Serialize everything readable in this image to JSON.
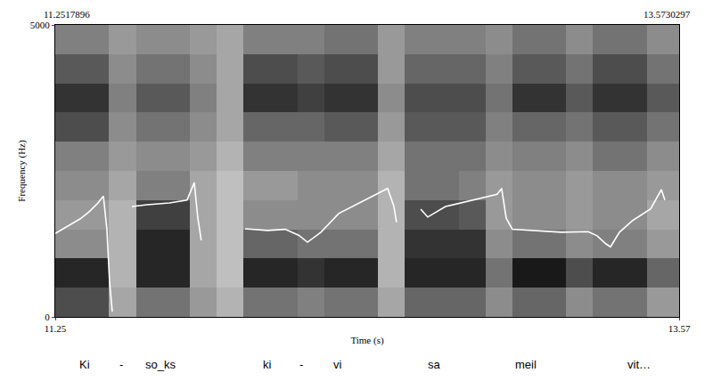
{
  "chart_data": {
    "type": "heatmap",
    "x_title": "Time (s)",
    "y_title": "Frequency (Hz)",
    "xlim": [
      11.25,
      13.57
    ],
    "xticks": [
      11.25,
      13.57
    ],
    "ylim": [
      0,
      5000
    ],
    "yticks": [
      0,
      5000
    ],
    "grid": false,
    "corner_labels": [
      "11.2517896",
      "13.5730297"
    ],
    "heatmap": {
      "x_edges": [
        11.25,
        11.35,
        11.45,
        11.55,
        11.65,
        11.75,
        11.85,
        11.95,
        12.05,
        12.15,
        12.25,
        12.35,
        12.45,
        12.55,
        12.65,
        12.75,
        12.85,
        12.95,
        13.05,
        13.15,
        13.25,
        13.35,
        13.45,
        13.57
      ],
      "y_edges": [
        0,
        500,
        1000,
        1500,
        2000,
        2500,
        3000,
        3500,
        4000,
        4500,
        5000
      ],
      "zlim": [
        0,
        100
      ],
      "cells": [
        [
          70,
          70,
          35,
          55,
          55,
          40,
          30,
          55,
          55,
          50,
          55,
          55,
          35,
          60,
          60,
          60,
          45,
          60,
          60,
          45,
          55,
          55,
          40
        ],
        [
          85,
          85,
          30,
          85,
          85,
          35,
          25,
          85,
          85,
          80,
          85,
          85,
          30,
          85,
          85,
          85,
          55,
          90,
          90,
          70,
          85,
          85,
          60
        ],
        [
          45,
          45,
          30,
          85,
          85,
          35,
          25,
          60,
          60,
          55,
          55,
          55,
          30,
          80,
          80,
          80,
          45,
          55,
          55,
          45,
          50,
          50,
          40
        ],
        [
          40,
          40,
          30,
          75,
          75,
          35,
          25,
          45,
          45,
          45,
          45,
          45,
          30,
          70,
          70,
          65,
          40,
          45,
          45,
          40,
          45,
          45,
          35
        ],
        [
          45,
          45,
          35,
          50,
          50,
          35,
          25,
          40,
          40,
          45,
          45,
          45,
          30,
          55,
          55,
          50,
          40,
          45,
          45,
          40,
          45,
          45,
          40
        ],
        [
          50,
          50,
          40,
          45,
          45,
          40,
          30,
          50,
          50,
          50,
          50,
          50,
          35,
          55,
          55,
          55,
          45,
          50,
          50,
          45,
          55,
          55,
          45
        ],
        [
          70,
          70,
          45,
          55,
          55,
          45,
          35,
          60,
          60,
          60,
          65,
          65,
          40,
          65,
          65,
          65,
          50,
          60,
          60,
          55,
          65,
          65,
          55
        ],
        [
          80,
          80,
          50,
          65,
          65,
          50,
          35,
          80,
          80,
          75,
          80,
          80,
          45,
          70,
          70,
          70,
          55,
          80,
          80,
          65,
          80,
          80,
          65
        ],
        [
          65,
          65,
          45,
          55,
          55,
          45,
          35,
          70,
          70,
          65,
          70,
          70,
          40,
          60,
          60,
          60,
          50,
          65,
          65,
          55,
          70,
          70,
          55
        ],
        [
          50,
          50,
          40,
          45,
          45,
          40,
          35,
          50,
          50,
          50,
          55,
          55,
          40,
          50,
          50,
          50,
          45,
          55,
          55,
          45,
          55,
          55,
          45
        ]
      ]
    },
    "series": [
      {
        "type": "line",
        "color": "#ffffff",
        "x": [
          11.25,
          11.293,
          11.343,
          11.376,
          11.409,
          11.429,
          11.442,
          11.452,
          11.462,
          11.5,
          11.535,
          11.591,
          11.674,
          11.74,
          11.767,
          11.78,
          11.793,
          11.87,
          11.956,
          12.039,
          12.105,
          12.155,
          12.188,
          12.238,
          12.304,
          12.403,
          12.486,
          12.509,
          12.519,
          12.55,
          12.609,
          12.635,
          12.701,
          12.8,
          12.893,
          12.91,
          12.927,
          12.95,
          13.033,
          13.132,
          13.232,
          13.265,
          13.298,
          13.315,
          13.348,
          13.397,
          13.464,
          13.504,
          13.517
        ],
        "values": [
          1430,
          1550,
          1680,
          1800,
          1950,
          2070,
          1500,
          600,
          90,
          null,
          1890,
          1920,
          1950,
          2000,
          2300,
          1700,
          1310,
          null,
          1510,
          1480,
          1500,
          1400,
          1280,
          1450,
          1770,
          2000,
          2200,
          1900,
          1620,
          null,
          1845,
          1710,
          1890,
          2000,
          2100,
          2200,
          1690,
          1500,
          1480,
          1450,
          1460,
          1390,
          1250,
          1200,
          1450,
          1650,
          1850,
          2180,
          2000
        ]
      }
    ],
    "annotations": [
      {
        "text": "Ki",
        "x": 11.36
      },
      {
        "text": "-",
        "x": 11.495
      },
      {
        "text": "so_ks",
        "x": 11.64
      },
      {
        "text": "ki",
        "x": 12.04
      },
      {
        "text": "-",
        "x": 12.165
      },
      {
        "text": "vi",
        "x": 12.3
      },
      {
        "text": "sa",
        "x": 12.66
      },
      {
        "text": "meil",
        "x": 13.0
      },
      {
        "text": "vit…",
        "x": 13.42
      }
    ]
  }
}
